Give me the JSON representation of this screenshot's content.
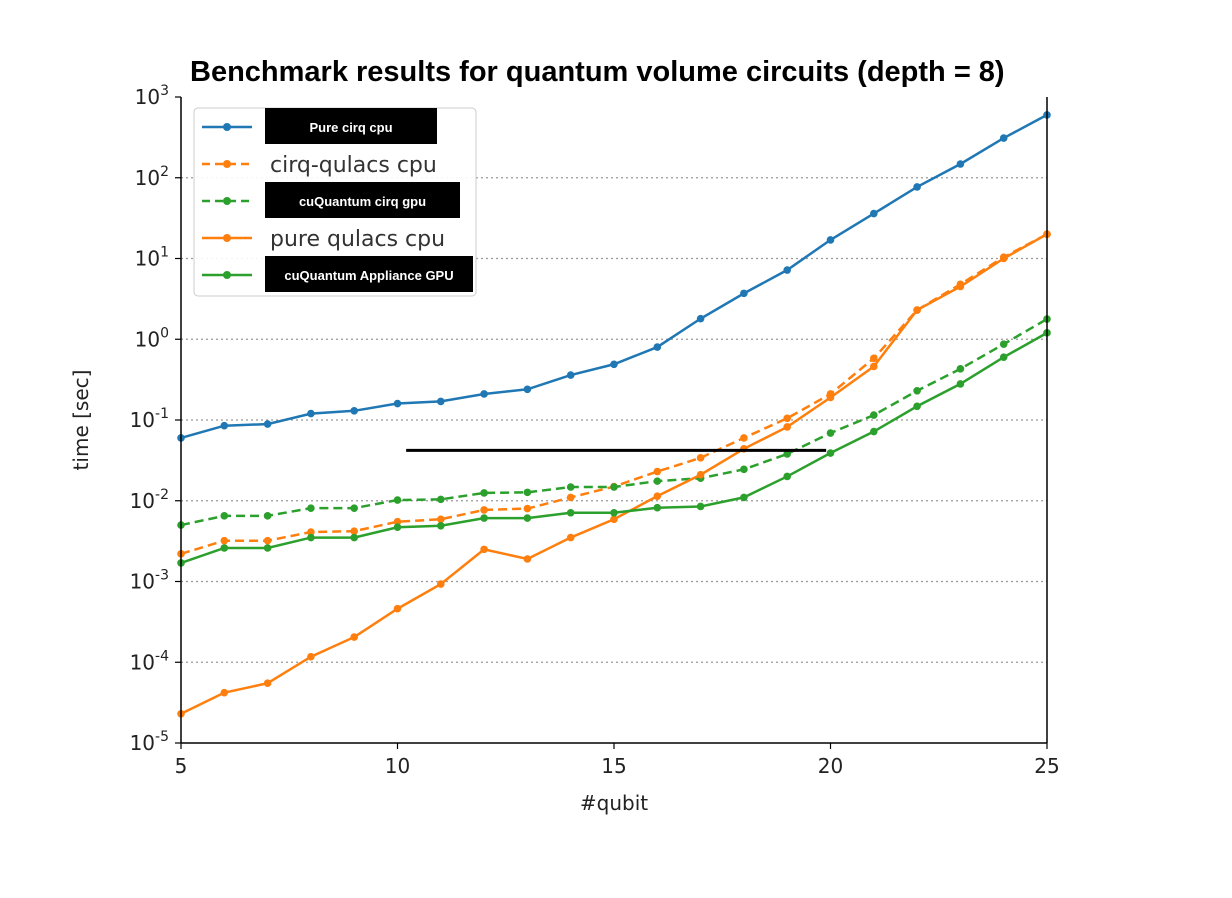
{
  "chart_data": {
    "type": "line",
    "title": "Benchmark results for quantum volume circuits (depth = 8)",
    "xlabel": "#qubit",
    "ylabel": "time [sec]",
    "xlim": [
      5,
      25
    ],
    "ylim": [
      1e-05,
      1000
    ],
    "yscale": "log",
    "grid": "horizontal dotted",
    "legend_position": "top-left",
    "x_ticks": [
      "5",
      "10",
      "15",
      "20",
      "25"
    ],
    "y_ticks": [
      {
        "base": "10",
        "exp": "-5"
      },
      {
        "base": "10",
        "exp": "-4"
      },
      {
        "base": "10",
        "exp": "-3"
      },
      {
        "base": "10",
        "exp": "-2"
      },
      {
        "base": "10",
        "exp": "-1"
      },
      {
        "base": "10",
        "exp": "0"
      },
      {
        "base": "10",
        "exp": "1"
      },
      {
        "base": "10",
        "exp": "2"
      },
      {
        "base": "10",
        "exp": "3"
      }
    ],
    "x": [
      5,
      6,
      7,
      8,
      9,
      10,
      11,
      12,
      13,
      14,
      15,
      16,
      17,
      18,
      19,
      20,
      21,
      22,
      23,
      24,
      25
    ],
    "series": [
      {
        "name": "Pure cirq cpu",
        "color": "#1f77b4",
        "dashed": false,
        "label_redacted": true,
        "values": [
          0.06,
          0.085,
          0.089,
          0.12,
          0.13,
          0.16,
          0.17,
          0.21,
          0.24,
          0.36,
          0.49,
          0.8,
          1.8,
          3.7,
          7.2,
          17,
          36,
          77,
          148,
          310,
          600
        ]
      },
      {
        "name": "cirq-qulacs cpu",
        "color": "#ff7f0e",
        "dashed": true,
        "label_redacted": false,
        "values": [
          0.0022,
          0.0032,
          0.0032,
          0.0041,
          0.0042,
          0.0055,
          0.0059,
          0.0077,
          0.008,
          0.011,
          0.015,
          0.023,
          0.034,
          0.06,
          0.105,
          0.21,
          0.58,
          2.3,
          4.8,
          10.4,
          20
        ]
      },
      {
        "name": "cuQuantum cirq gpu",
        "color": "#2ca02c",
        "dashed": true,
        "label_redacted": true,
        "values": [
          0.005,
          0.0065,
          0.0065,
          0.0081,
          0.0081,
          0.0102,
          0.0104,
          0.0125,
          0.0127,
          0.0148,
          0.0148,
          0.0175,
          0.019,
          0.0245,
          0.038,
          0.069,
          0.115,
          0.23,
          0.43,
          0.87,
          1.78
        ]
      },
      {
        "name": "pure qulacs cpu",
        "color": "#ff7f0e",
        "dashed": false,
        "label_redacted": false,
        "values": [
          2.3e-05,
          4.2e-05,
          5.5e-05,
          0.000117,
          0.000205,
          0.00046,
          0.00093,
          0.0025,
          0.0019,
          0.0035,
          0.0059,
          0.0114,
          0.021,
          0.044,
          0.082,
          0.19,
          0.46,
          2.3,
          4.5,
          10,
          20
        ]
      },
      {
        "name": "cuQuantum Appliance GPU",
        "color": "#2ca02c",
        "dashed": false,
        "label_redacted": true,
        "values": [
          0.0017,
          0.0026,
          0.0026,
          0.0035,
          0.0035,
          0.0047,
          0.0049,
          0.0061,
          0.0061,
          0.0071,
          0.0071,
          0.0082,
          0.0085,
          0.011,
          0.02,
          0.039,
          0.072,
          0.148,
          0.28,
          0.6,
          1.2
        ]
      }
    ],
    "annotation_line": {
      "x_range": [
        10.2,
        19.9
      ],
      "y": 0.042,
      "color": "#000000"
    }
  }
}
